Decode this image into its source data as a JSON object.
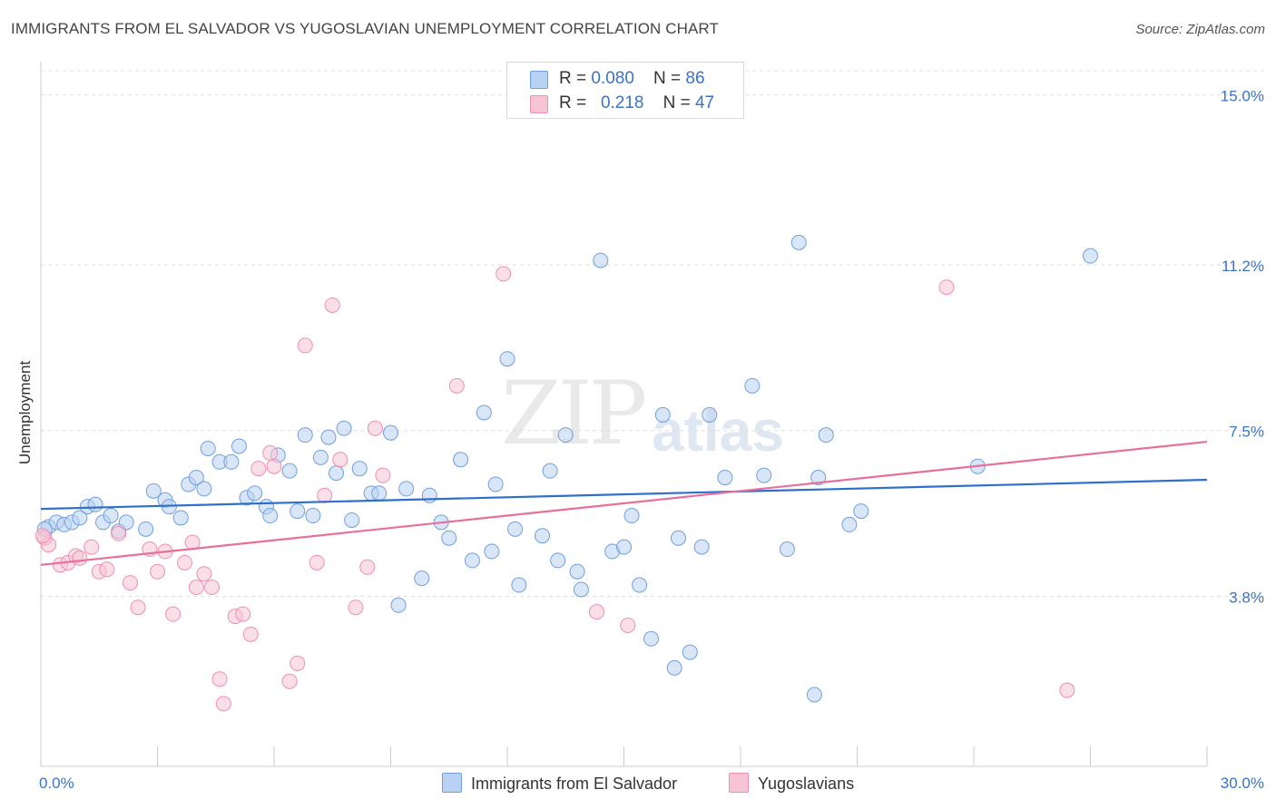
{
  "title": "IMMIGRANTS FROM EL SALVADOR VS YUGOSLAVIAN UNEMPLOYMENT CORRELATION CHART",
  "source": "Source: ZipAtlas.com",
  "watermark": {
    "zip": "ZIP",
    "atlas": "atlas"
  },
  "legend_top": [
    {
      "r_label": "R = ",
      "r_value": "0.080",
      "n_label": "N = ",
      "n_value": "86",
      "color": "#a9c6f0"
    },
    {
      "r_label": "R = ",
      "r_value": "0.218",
      "n_label": "N = ",
      "n_value": "47",
      "color": "#f5b5cb"
    }
  ],
  "chart_data": {
    "type": "scatter",
    "title": "IMMIGRANTS FROM EL SALVADOR VS YUGOSLAVIAN UNEMPLOYMENT CORRELATION CHART",
    "xlabel": "",
    "ylabel": "Unemployment",
    "xlim": [
      0,
      30
    ],
    "ylim": [
      0,
      15.9
    ],
    "x_tick_labels": [
      "0.0%",
      "30.0%"
    ],
    "y_ticks": [
      3.8,
      7.5,
      11.2,
      15.0
    ],
    "y_tick_labels": [
      "3.8%",
      "7.5%",
      "11.2%",
      "15.0%"
    ],
    "grid": true,
    "legend_position": "bottom",
    "series": [
      {
        "name": "Immigrants from El Salvador",
        "color": "#6f9fe0",
        "fill": "#b9d1f3",
        "line_color": "#2f6fcb",
        "trend": [
          [
            0,
            5.75
          ],
          [
            30,
            6.4
          ]
        ],
        "points": [
          [
            0.2,
            5.35
          ],
          [
            0.4,
            5.45
          ],
          [
            0.6,
            5.4
          ],
          [
            0.8,
            5.45
          ],
          [
            1.0,
            5.55
          ],
          [
            1.2,
            5.8
          ],
          [
            1.4,
            5.85
          ],
          [
            1.6,
            5.45
          ],
          [
            1.8,
            5.6
          ],
          [
            2.0,
            5.25
          ],
          [
            2.2,
            5.45
          ],
          [
            2.7,
            5.3
          ],
          [
            2.9,
            6.15
          ],
          [
            3.2,
            5.95
          ],
          [
            3.3,
            5.8
          ],
          [
            3.6,
            5.55
          ],
          [
            3.8,
            6.3
          ],
          [
            4.0,
            6.45
          ],
          [
            4.2,
            6.2
          ],
          [
            4.3,
            7.1
          ],
          [
            4.6,
            6.8
          ],
          [
            4.9,
            6.8
          ],
          [
            5.1,
            7.15
          ],
          [
            5.3,
            6.0
          ],
          [
            5.5,
            6.1
          ],
          [
            5.8,
            5.8
          ],
          [
            5.9,
            5.6
          ],
          [
            6.1,
            6.95
          ],
          [
            6.4,
            6.6
          ],
          [
            6.6,
            5.7
          ],
          [
            6.8,
            7.4
          ],
          [
            7.0,
            5.6
          ],
          [
            7.2,
            6.9
          ],
          [
            7.4,
            7.35
          ],
          [
            7.6,
            6.55
          ],
          [
            7.8,
            7.55
          ],
          [
            8.0,
            5.5
          ],
          [
            8.2,
            6.65
          ],
          [
            8.5,
            6.1
          ],
          [
            8.7,
            6.1
          ],
          [
            9.0,
            7.45
          ],
          [
            9.2,
            3.6
          ],
          [
            9.4,
            6.2
          ],
          [
            9.8,
            4.2
          ],
          [
            10.0,
            6.05
          ],
          [
            10.3,
            5.45
          ],
          [
            10.5,
            5.1
          ],
          [
            10.8,
            6.85
          ],
          [
            11.1,
            4.6
          ],
          [
            11.4,
            7.9
          ],
          [
            11.6,
            4.8
          ],
          [
            11.7,
            6.3
          ],
          [
            12.0,
            9.1
          ],
          [
            12.2,
            5.3
          ],
          [
            12.3,
            4.05
          ],
          [
            12.9,
            5.15
          ],
          [
            13.1,
            6.6
          ],
          [
            13.3,
            4.6
          ],
          [
            13.5,
            7.4
          ],
          [
            13.8,
            4.35
          ],
          [
            13.9,
            3.95
          ],
          [
            14.4,
            11.3
          ],
          [
            14.7,
            4.8
          ],
          [
            15.0,
            4.9
          ],
          [
            15.2,
            5.6
          ],
          [
            15.4,
            4.05
          ],
          [
            15.7,
            2.85
          ],
          [
            16.0,
            7.85
          ],
          [
            16.3,
            2.2
          ],
          [
            16.4,
            5.1
          ],
          [
            16.7,
            2.55
          ],
          [
            17.0,
            4.9
          ],
          [
            17.2,
            7.85
          ],
          [
            17.6,
            6.45
          ],
          [
            18.3,
            8.5
          ],
          [
            18.6,
            6.5
          ],
          [
            19.2,
            4.85
          ],
          [
            19.5,
            11.7
          ],
          [
            19.9,
            1.6
          ],
          [
            20.0,
            6.45
          ],
          [
            20.2,
            7.4
          ],
          [
            20.8,
            5.4
          ],
          [
            21.1,
            5.7
          ],
          [
            24.1,
            6.7
          ],
          [
            27.0,
            11.4
          ],
          [
            0.1,
            5.3
          ]
        ]
      },
      {
        "name": "Yugoslavians",
        "color": "#ee8fb0",
        "fill": "#f7c4d6",
        "line_color": "#e86f9c",
        "trend": [
          [
            0,
            4.5
          ],
          [
            30,
            7.25
          ]
        ],
        "points": [
          [
            0.1,
            5.1
          ],
          [
            0.2,
            4.95
          ],
          [
            0.5,
            4.5
          ],
          [
            0.7,
            4.55
          ],
          [
            0.9,
            4.7
          ],
          [
            1.0,
            4.65
          ],
          [
            1.3,
            4.9
          ],
          [
            1.5,
            4.35
          ],
          [
            1.7,
            4.4
          ],
          [
            2.0,
            5.2
          ],
          [
            2.3,
            4.1
          ],
          [
            2.5,
            3.55
          ],
          [
            2.8,
            4.85
          ],
          [
            3.0,
            4.35
          ],
          [
            3.2,
            4.8
          ],
          [
            3.4,
            3.4
          ],
          [
            3.7,
            4.55
          ],
          [
            3.9,
            5.0
          ],
          [
            4.0,
            4.0
          ],
          [
            4.2,
            4.3
          ],
          [
            4.4,
            4.0
          ],
          [
            4.6,
            1.95
          ],
          [
            4.7,
            1.4
          ],
          [
            5.0,
            3.35
          ],
          [
            5.2,
            3.4
          ],
          [
            5.4,
            2.95
          ],
          [
            5.6,
            6.65
          ],
          [
            5.9,
            7.0
          ],
          [
            6.0,
            6.7
          ],
          [
            6.4,
            1.9
          ],
          [
            6.6,
            2.3
          ],
          [
            6.8,
            9.4
          ],
          [
            7.1,
            4.55
          ],
          [
            7.3,
            6.05
          ],
          [
            7.5,
            10.3
          ],
          [
            7.7,
            6.85
          ],
          [
            8.1,
            3.55
          ],
          [
            8.4,
            4.45
          ],
          [
            8.6,
            7.55
          ],
          [
            8.8,
            6.5
          ],
          [
            10.7,
            8.5
          ],
          [
            11.9,
            11.0
          ],
          [
            14.3,
            3.45
          ],
          [
            15.1,
            3.15
          ],
          [
            23.3,
            10.7
          ],
          [
            26.4,
            1.7
          ],
          [
            0.05,
            5.15
          ]
        ]
      }
    ]
  }
}
